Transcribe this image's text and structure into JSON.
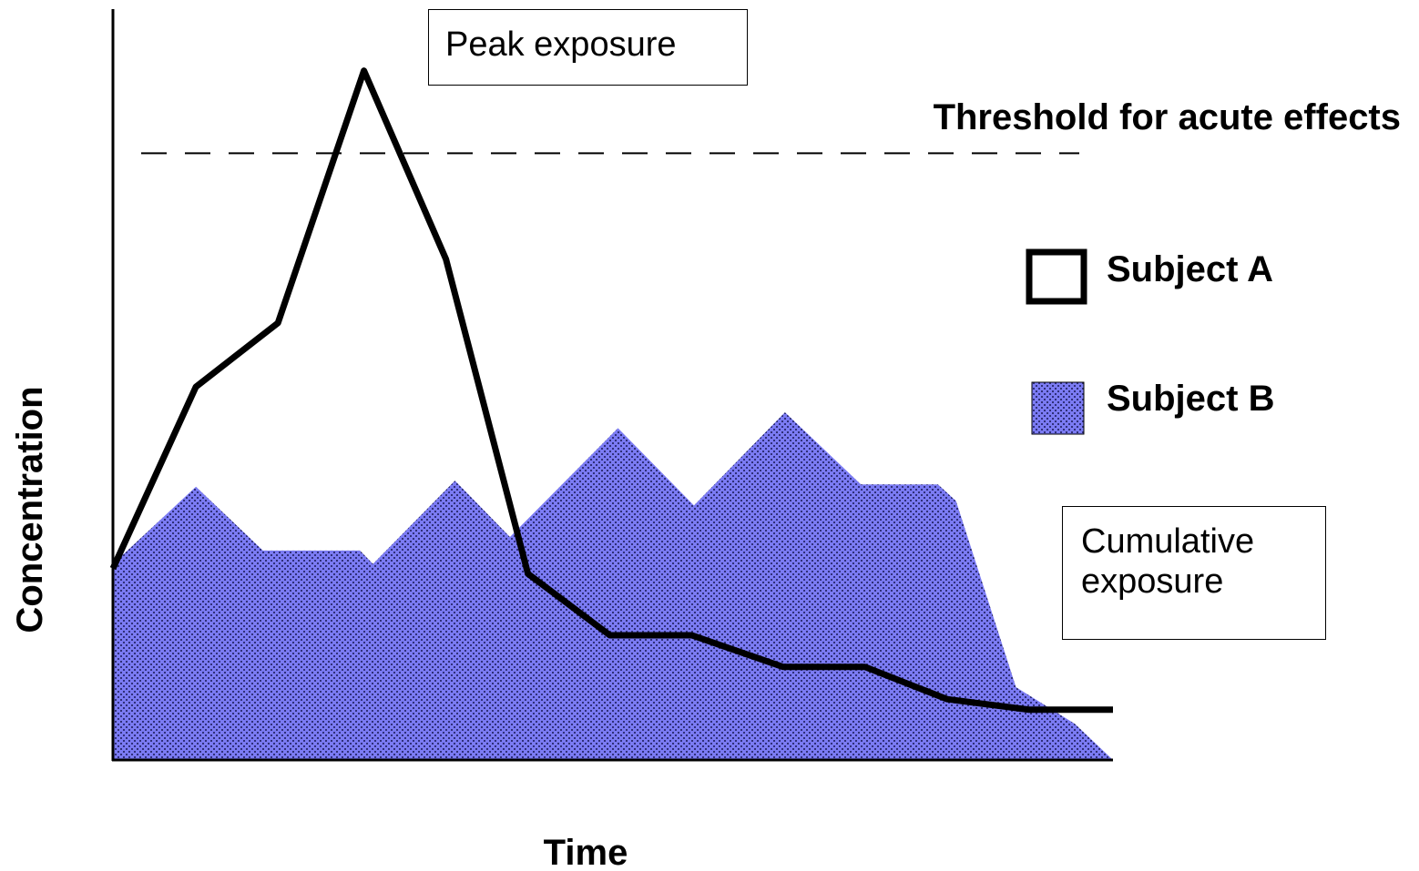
{
  "chart_data": {
    "type": "line",
    "xlabel": "Time",
    "ylabel": "Concentration",
    "xlim": [
      0,
      100
    ],
    "ylim": [
      0,
      100
    ],
    "threshold": {
      "label": "Threshold for acute effects",
      "value": 80.8
    },
    "annotations": [
      "Peak exposure",
      "Cumulative exposure"
    ],
    "series": [
      {
        "name": "Subject A",
        "style": "line",
        "color": "#000000",
        "x": [
          0,
          8.3,
          16.5,
          25.1,
          33.3,
          41.5,
          49.7,
          57.9,
          67.0,
          75.2,
          83.4,
          91.6,
          100
        ],
        "values": [
          25.5,
          49.7,
          58.2,
          91.8,
          66.7,
          24.8,
          16.6,
          16.6,
          12.4,
          12.4,
          8.1,
          6.7,
          6.7
        ]
      },
      {
        "name": "Subject B",
        "style": "area",
        "color": "#7b7bf3",
        "x": [
          0,
          8.3,
          15.0,
          24.7,
          26.0,
          34.2,
          39.7,
          50.5,
          58.1,
          67.2,
          74.8,
          82.5,
          84.3,
          90.3,
          96.2,
          100
        ],
        "values": [
          26.1,
          36.4,
          27.9,
          27.9,
          26.1,
          37.2,
          29.7,
          44.2,
          33.9,
          46.3,
          36.7,
          36.7,
          34.5,
          9.7,
          4.8,
          0
        ]
      }
    ]
  }
}
